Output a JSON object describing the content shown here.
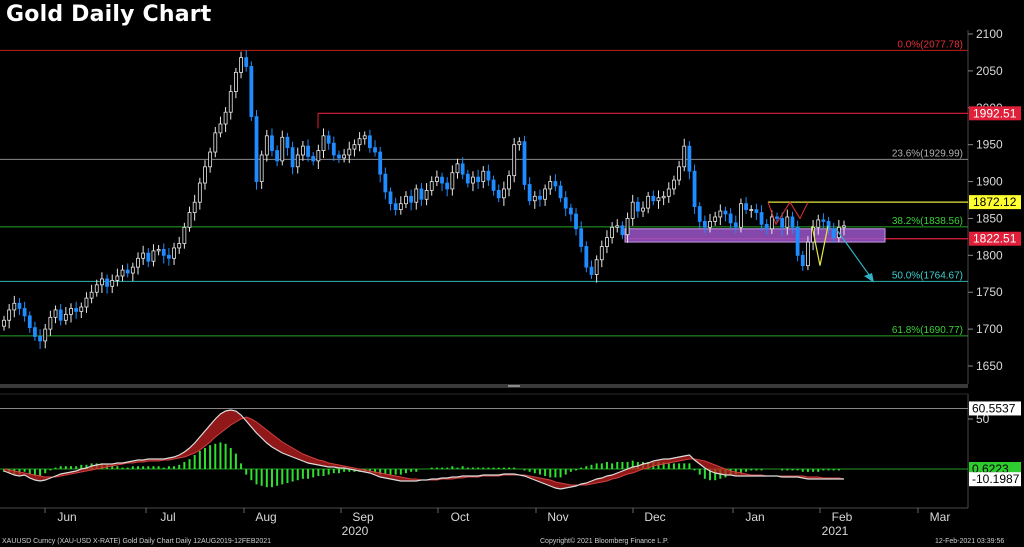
{
  "title": "Gold Daily Chart",
  "footer": {
    "left": "XAUUSD Curncy (XAU-USD X-RATE) Gold Daily Chart  Daily 12AUG2019-12FEB2021",
    "center": "Copyright© 2021 Bloomberg Finance L.P.",
    "right": "12-Feb-2021 03:39:56"
  },
  "chart_data": [
    {
      "type": "candlestick",
      "title": "Gold Daily Chart",
      "y_ticks": [
        1650,
        1700,
        1750,
        1800,
        1850,
        1900,
        1950,
        2000,
        2050,
        2100
      ],
      "ylim": [
        1620,
        2110
      ],
      "x_month_labels": [
        "Jun",
        "Jul",
        "Aug",
        "Sep",
        "Oct",
        "Nov",
        "Dec",
        "Jan",
        "Feb",
        "Mar"
      ],
      "x_year_labels": [
        "2020",
        "2021"
      ],
      "fibonacci_levels": [
        {
          "label": "0.0%(2077.78)",
          "value": 2077.78,
          "color": "#c0201c"
        },
        {
          "label": "23.6%(1929.99)",
          "value": 1929.99,
          "color": "#8a8a8a"
        },
        {
          "label": "38.2%(1838.56)",
          "value": 1838.56,
          "color": "#27a327"
        },
        {
          "label": "50.0%(1764.67)",
          "value": 1764.67,
          "color": "#2fb2b2"
        },
        {
          "label": "61.8%(1690.77)",
          "value": 1690.77,
          "color": "#27a327"
        }
      ],
      "price_tags": [
        {
          "value": "1992.51",
          "bg": "#e0203a",
          "fg": "#ffffff"
        },
        {
          "value": "1872.12",
          "bg": "#ffff30",
          "fg": "#000000"
        },
        {
          "value": "1822.51",
          "bg": "#e0203a",
          "fg": "#ffffff"
        }
      ],
      "horizontal_lines": [
        {
          "value": 1992.51,
          "color": "#e0203a"
        },
        {
          "value": 1872.12,
          "color": "#e8e840"
        },
        {
          "value": 1822.51,
          "color": "#e0203a"
        }
      ],
      "support_zone": {
        "from": 1818,
        "to": 1836,
        "color": "#9a55c8"
      },
      "closes": [
        1712,
        1726,
        1735,
        1728,
        1718,
        1702,
        1690,
        1684,
        1700,
        1716,
        1726,
        1712,
        1720,
        1728,
        1724,
        1730,
        1742,
        1750,
        1760,
        1768,
        1758,
        1766,
        1772,
        1780,
        1776,
        1784,
        1796,
        1803,
        1792,
        1806,
        1808,
        1800,
        1796,
        1810,
        1816,
        1838,
        1858,
        1872,
        1898,
        1920,
        1940,
        1966,
        1978,
        1994,
        2022,
        2048,
        2068,
        2056,
        1988,
        1900,
        1936,
        1962,
        1942,
        1928,
        1960,
        1946,
        1920,
        1936,
        1948,
        1934,
        1928,
        1942,
        1962,
        1952,
        1936,
        1932,
        1936,
        1944,
        1950,
        1958,
        1962,
        1946,
        1940,
        1910,
        1886,
        1870,
        1862,
        1870,
        1880,
        1872,
        1890,
        1876,
        1888,
        1900,
        1906,
        1898,
        1890,
        1912,
        1924,
        1910,
        1898,
        1906,
        1900,
        1914,
        1902,
        1888,
        1878,
        1890,
        1908,
        1950,
        1954,
        1896,
        1874,
        1880,
        1876,
        1890,
        1900,
        1894,
        1878,
        1864,
        1856,
        1836,
        1812,
        1784,
        1774,
        1794,
        1812,
        1824,
        1838,
        1840,
        1828,
        1850,
        1872,
        1860,
        1864,
        1880,
        1874,
        1878,
        1880,
        1890,
        1902,
        1920,
        1948,
        1914,
        1866,
        1846,
        1838,
        1846,
        1852,
        1860,
        1856,
        1844,
        1838,
        1870,
        1862,
        1862,
        1858,
        1842,
        1836,
        1852,
        1850,
        1838,
        1852,
        1838,
        1800,
        1786,
        1818,
        1838,
        1848,
        1846,
        1836,
        1824,
        1838,
        1840
      ],
      "macd": [
        -2,
        -4,
        -6,
        -7,
        -6,
        -9,
        -11,
        -12,
        -11,
        -9,
        -7,
        -5,
        -4,
        -3,
        -2,
        0,
        1,
        3,
        4,
        5,
        5,
        5,
        6,
        6,
        7,
        8,
        9,
        9,
        10,
        10,
        10,
        10,
        11,
        12,
        14,
        17,
        21,
        26,
        32,
        38,
        44,
        50,
        55,
        58,
        59,
        58,
        54,
        48,
        42,
        36,
        31,
        26,
        22,
        19,
        16,
        14,
        12,
        10,
        8,
        6,
        5,
        4,
        3,
        2,
        2,
        1,
        1,
        0,
        -1,
        -2,
        -3,
        -4,
        -6,
        -8,
        -9,
        -10,
        -11,
        -12,
        -12,
        -12,
        -12,
        -11,
        -11,
        -10,
        -10,
        -9,
        -9,
        -8,
        -8,
        -7,
        -7,
        -7,
        -7,
        -6,
        -6,
        -6,
        -6,
        -5,
        -5,
        -5,
        -6,
        -7,
        -9,
        -11,
        -13,
        -15,
        -17,
        -19,
        -20,
        -19,
        -18,
        -17,
        -15,
        -14,
        -12,
        -10,
        -9,
        -7,
        -6,
        -4,
        -2,
        0,
        2,
        3,
        5,
        6,
        8,
        9,
        10,
        10,
        11,
        12,
        13,
        14,
        9,
        5,
        1,
        -2,
        -4,
        -5,
        -6,
        -6,
        -7,
        -7,
        -7,
        -7,
        -7,
        -7,
        -7,
        -7,
        -7,
        -8,
        -8,
        -8,
        -8,
        -9,
        -10,
        -10,
        -10,
        -10,
        -10,
        -10,
        -10,
        -10
      ],
      "signal": [
        0,
        -1,
        -2,
        -3,
        -4,
        -5,
        -6,
        -7,
        -8,
        -8,
        -8,
        -7,
        -6,
        -5,
        -4,
        -3,
        -2,
        -1,
        0,
        1,
        2,
        3,
        4,
        5,
        6,
        6,
        7,
        7,
        8,
        8,
        8,
        9,
        9,
        10,
        11,
        12,
        14,
        16,
        19,
        23,
        27,
        32,
        36,
        40,
        44,
        47,
        50,
        52,
        50,
        47,
        43,
        39,
        35,
        31,
        27,
        24,
        21,
        18,
        15,
        13,
        11,
        9,
        8,
        6,
        5,
        4,
        3,
        2,
        1,
        0,
        -1,
        -2,
        -3,
        -4,
        -5,
        -6,
        -7,
        -8,
        -9,
        -10,
        -10,
        -11,
        -11,
        -11,
        -11,
        -10,
        -10,
        -10,
        -9,
        -9,
        -8,
        -8,
        -8,
        -7,
        -7,
        -7,
        -7,
        -6,
        -6,
        -6,
        -6,
        -6,
        -7,
        -8,
        -9,
        -10,
        -11,
        -13,
        -14,
        -15,
        -16,
        -16,
        -16,
        -16,
        -15,
        -14,
        -13,
        -12,
        -10,
        -9,
        -7,
        -5,
        -4,
        -2,
        0,
        1,
        3,
        4,
        5,
        6,
        7,
        8,
        9,
        10,
        10,
        9,
        8,
        6,
        4,
        2,
        0,
        -2,
        -3,
        -4,
        -5,
        -6,
        -6,
        -6,
        -7,
        -7,
        -7,
        -7,
        -7,
        -7,
        -7,
        -7,
        -8,
        -8,
        -8,
        -9,
        -9,
        -9,
        -9,
        -10,
        -10,
        -10
      ]
    },
    {
      "type": "line",
      "title": "",
      "y_ticks": [
        50
      ],
      "value_tags": [
        {
          "value": "60.5537",
          "bg": "#ffffff",
          "fg": "#000000"
        },
        {
          "value": "0.6223",
          "bg": "#2fcc2f",
          "fg": "#000000"
        },
        {
          "value": "-10.1987",
          "bg": "#ffffff",
          "fg": "#000000"
        }
      ]
    }
  ]
}
